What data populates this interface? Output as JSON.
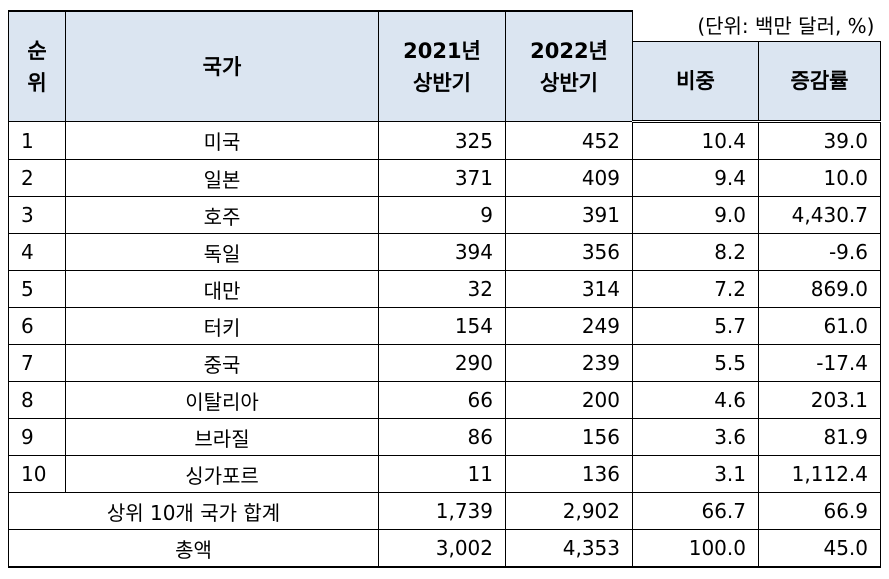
{
  "header": {
    "rank": [
      "순",
      "위"
    ],
    "country": "국가",
    "h2021": [
      "2021년",
      "상반기"
    ],
    "h2022": [
      "2022년",
      "상반기"
    ],
    "units": "(단위: 백만 달러, %)",
    "share": "비중",
    "growth": "증감률"
  },
  "rows": [
    {
      "rank": "1",
      "country": "미국",
      "v2021": "325",
      "v2022": "452",
      "share": "10.4",
      "growth": "39.0"
    },
    {
      "rank": "2",
      "country": "일본",
      "v2021": "371",
      "v2022": "409",
      "share": "9.4",
      "growth": "10.0"
    },
    {
      "rank": "3",
      "country": "호주",
      "v2021": "9",
      "v2022": "391",
      "share": "9.0",
      "growth": "4,430.7"
    },
    {
      "rank": "4",
      "country": "독일",
      "v2021": "394",
      "v2022": "356",
      "share": "8.2",
      "growth": "-9.6"
    },
    {
      "rank": "5",
      "country": "대만",
      "v2021": "32",
      "v2022": "314",
      "share": "7.2",
      "growth": "869.0"
    },
    {
      "rank": "6",
      "country": "터키",
      "v2021": "154",
      "v2022": "249",
      "share": "5.7",
      "growth": "61.0"
    },
    {
      "rank": "7",
      "country": "중국",
      "v2021": "290",
      "v2022": "239",
      "share": "5.5",
      "growth": "-17.4"
    },
    {
      "rank": "8",
      "country": "이탈리아",
      "v2021": "66",
      "v2022": "200",
      "share": "4.6",
      "growth": "203.1"
    },
    {
      "rank": "9",
      "country": "브라질",
      "v2021": "86",
      "v2022": "156",
      "share": "3.6",
      "growth": "81.9"
    },
    {
      "rank": "10",
      "country": "싱가포르",
      "v2021": "11",
      "v2022": "136",
      "share": "3.1",
      "growth": "1,112.4"
    }
  ],
  "top10_total": {
    "label": "상위 10개 국가 합계",
    "v2021": "1,739",
    "v2022": "2,902",
    "share": "66.7",
    "growth": "66.9"
  },
  "grand_total": {
    "label": "총액",
    "v2021": "3,002",
    "v2022": "4,353",
    "share": "100.0",
    "growth": "45.0"
  },
  "colors": {
    "header_bg": "#dbe5f1",
    "border": "#000000"
  }
}
